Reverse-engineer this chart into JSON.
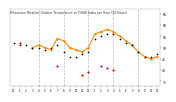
{
  "title": "Milwaukee Weather Outdoor Temperature vs THSW Index per Hour (24 Hours)",
  "background_color": "#ffffff",
  "grid_color": "#bbbbbb",
  "ylim": [
    33,
    67
  ],
  "xlim": [
    -0.5,
    23.5
  ],
  "ytick_values": [
    35,
    40,
    45,
    50,
    55,
    60,
    65
  ],
  "ytick_labels": [
    "35",
    "40",
    "45",
    "50",
    "55",
    "60",
    "65"
  ],
  "xticks": [
    0,
    1,
    2,
    3,
    4,
    5,
    6,
    7,
    8,
    9,
    10,
    11,
    12,
    13,
    14,
    15,
    16,
    17,
    18,
    19,
    20,
    21,
    22,
    23
  ],
  "xtick_labels": [
    "12",
    "1",
    "2",
    "3",
    "4",
    "5",
    "6",
    "7",
    "8",
    "9",
    "10",
    "11",
    "12",
    "1",
    "2",
    "3",
    "4",
    "5",
    "6",
    "7",
    "8",
    "9",
    "10",
    "11"
  ],
  "temp_x": [
    0,
    1,
    2,
    3,
    4,
    5,
    6,
    7,
    8,
    9,
    10,
    11,
    12,
    13,
    14,
    15,
    16,
    17,
    18,
    19,
    20,
    21,
    22,
    23
  ],
  "temp_y": [
    52,
    51,
    51,
    50,
    50,
    49,
    50,
    51,
    48,
    46,
    46,
    47,
    48,
    54,
    55,
    56,
    56,
    54,
    52,
    51,
    48,
    46,
    46,
    47
  ],
  "thsw_x": [
    3,
    4,
    5,
    6,
    7,
    8,
    9,
    10,
    11,
    12,
    13,
    14,
    15,
    16,
    17,
    18,
    19,
    20,
    21,
    22,
    23
  ],
  "thsw_y": [
    50,
    51,
    50,
    49,
    54,
    53,
    50,
    49,
    48,
    50,
    56,
    57,
    58,
    57,
    55,
    53,
    51,
    48,
    46,
    45,
    46
  ],
  "temp_color": "#000000",
  "thsw_color": "#ff8800",
  "red_x": [
    1,
    7,
    11,
    12,
    14,
    15,
    16
  ],
  "red_y": [
    52,
    42,
    38,
    39,
    42,
    41,
    40
  ],
  "red_color": "#ff0000",
  "vline_positions": [
    4,
    8,
    12,
    16,
    20
  ]
}
